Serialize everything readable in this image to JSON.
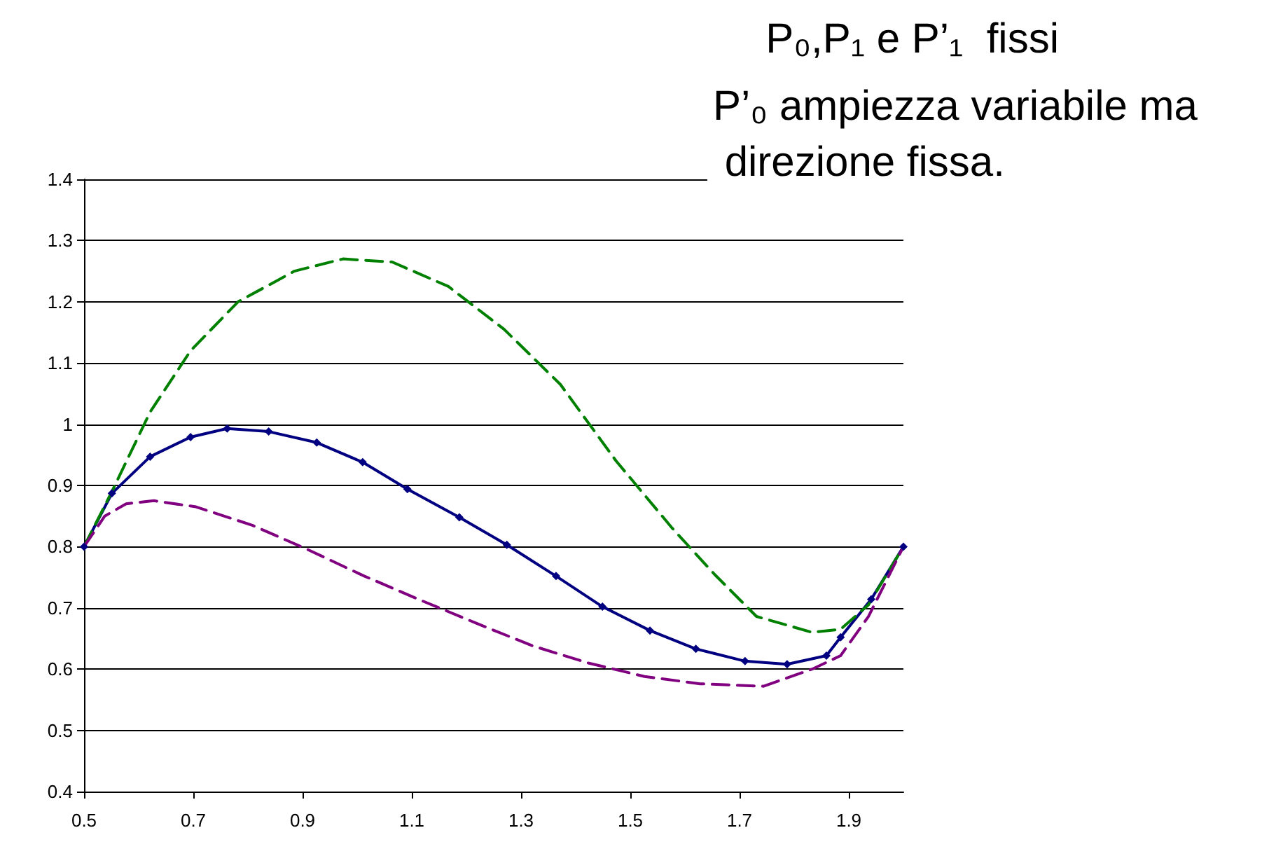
{
  "chart_data": {
    "type": "line",
    "title": "P₀,P₁ e P’₁  fissi",
    "annotations": [
      "P’₀ ampiezza variabile ma direzione fissa."
    ],
    "xlim": [
      0.5,
      2.0
    ],
    "xticks": [
      0.5,
      0.7,
      0.9,
      1.1,
      1.3,
      1.5,
      1.7,
      1.9
    ],
    "ylim": [
      0.4,
      1.4
    ],
    "yticks": [
      0.4,
      0.5,
      0.6,
      0.7,
      0.8,
      0.9,
      1,
      1.1,
      1.2,
      1.3,
      1.4
    ],
    "grid": "y",
    "series": [
      {
        "color": "#000080",
        "marker": "diamond",
        "line_style": "solid",
        "x": [
          0.5,
          0.551,
          0.621,
          0.695,
          0.762,
          0.838,
          0.926,
          1.01,
          1.092,
          1.187,
          1.274,
          1.364,
          1.449,
          1.536,
          1.62,
          1.71,
          1.787,
          1.859,
          1.885,
          1.941,
          2.0
        ],
        "values": [
          0.8,
          0.887,
          0.947,
          0.979,
          0.993,
          0.988,
          0.97,
          0.938,
          0.894,
          0.848,
          0.803,
          0.752,
          0.702,
          0.663,
          0.633,
          0.613,
          0.608,
          0.622,
          0.652,
          0.714,
          0.8
        ]
      },
      {
        "color": "#008000",
        "marker": "none",
        "line_style": "dashed",
        "x": [
          0.5,
          0.551,
          0.621,
          0.695,
          0.782,
          0.885,
          0.974,
          1.064,
          1.167,
          1.269,
          1.372,
          1.474,
          1.577,
          1.654,
          1.731,
          1.833,
          1.885,
          1.936,
          2.0
        ],
        "values": [
          0.8,
          0.89,
          1.02,
          1.12,
          1.2,
          1.25,
          1.27,
          1.265,
          1.225,
          1.155,
          1.065,
          0.94,
          0.83,
          0.755,
          0.686,
          0.66,
          0.665,
          0.705,
          0.8
        ]
      },
      {
        "color": "#800080",
        "marker": "none",
        "line_style": "dashed",
        "x": [
          0.5,
          0.538,
          0.577,
          0.628,
          0.705,
          0.808,
          0.91,
          1.013,
          1.115,
          1.218,
          1.321,
          1.423,
          1.526,
          1.628,
          1.744,
          1.833,
          1.885,
          1.936,
          2.0
        ],
        "values": [
          0.8,
          0.85,
          0.87,
          0.875,
          0.865,
          0.835,
          0.795,
          0.752,
          0.713,
          0.675,
          0.638,
          0.61,
          0.588,
          0.576,
          0.572,
          0.6,
          0.622,
          0.686,
          0.8
        ]
      }
    ]
  }
}
